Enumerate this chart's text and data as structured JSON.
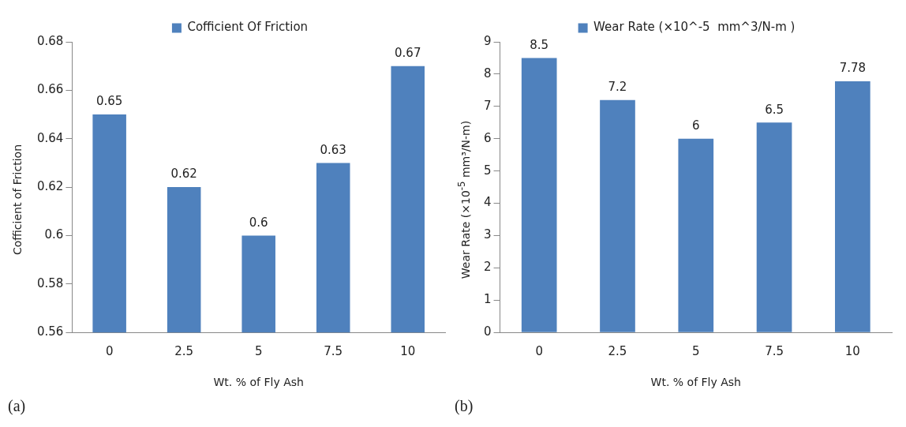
{
  "chart_data": [
    {
      "type": "bar",
      "categories": [
        "0",
        "2.5",
        "5",
        "7.5",
        "10"
      ],
      "series": [
        {
          "name": "Cofficient Of Friction",
          "color": "#4f81bd",
          "values": [
            0.65,
            0.62,
            0.6,
            0.63,
            0.67
          ]
        }
      ],
      "xlabel": "Wt. % of Fly Ash",
      "ylabel": "Cofficient of Friction",
      "ylim": [
        0.56,
        0.68
      ],
      "yticks": [
        0.56,
        0.58,
        0.6,
        0.62,
        0.64,
        0.66,
        0.68
      ],
      "grid": false,
      "legend": "top",
      "data_labels": true,
      "annotations": [
        "(a)"
      ]
    },
    {
      "type": "bar",
      "categories": [
        "0",
        "2.5",
        "5",
        "7.5",
        "10"
      ],
      "series": [
        {
          "name": "Wear Rate (×10^-5  mm^3/N-m )",
          "color": "#4f81bd",
          "values": [
            8.5,
            7.2,
            6,
            6.5,
            7.78
          ]
        }
      ],
      "xlabel": "Wt. % of Fly Ash",
      "ylabel": "Wear Rate (×10$^{-5}$ mm³/N-m)",
      "ylim": [
        0,
        9
      ],
      "yticks": [
        0,
        1,
        2,
        3,
        4,
        5,
        6,
        7,
        8,
        9
      ],
      "grid": false,
      "legend": "top",
      "data_labels": true,
      "annotations": [
        "(b)"
      ]
    }
  ]
}
